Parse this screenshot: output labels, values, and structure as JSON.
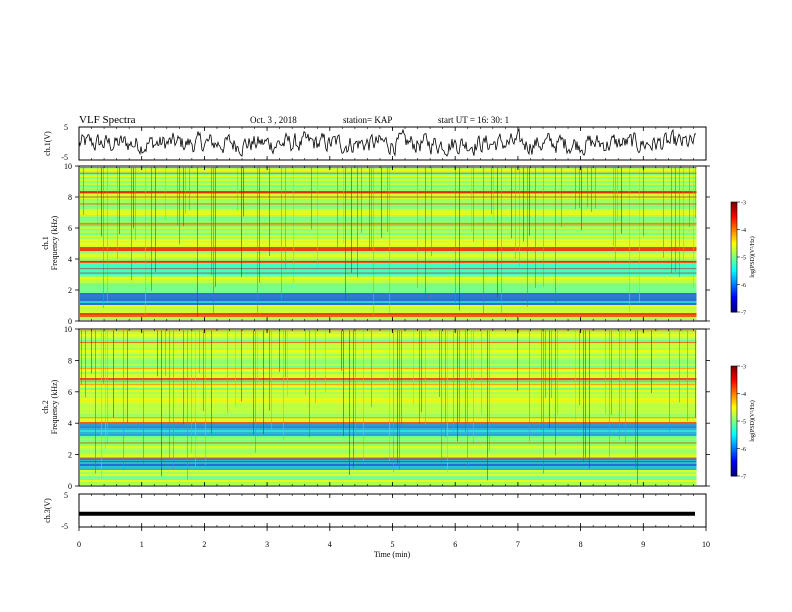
{
  "header": {
    "title": "VLF Spectra",
    "date": "Oct. 3  , 2018",
    "station": "station= KAP",
    "start": "start  UT  =   16: 30: 1"
  },
  "chart_data": [
    {
      "type": "line",
      "name": "ch1-waveform",
      "ylabel": "ch.1(V)",
      "yticks": [
        "5",
        "-5"
      ],
      "ylim": [
        -5,
        5
      ],
      "xlim": [
        0,
        10
      ],
      "mean": 0.0,
      "amplitude": 3.5,
      "end_x": 9.85
    },
    {
      "type": "heatmap",
      "name": "ch1-spectrogram",
      "ylabel_top": "ch.1",
      "ylabel": "Frequency  (kHz)",
      "yticks": [
        "0",
        "2",
        "4",
        "6",
        "8",
        "10"
      ],
      "ylim": [
        0,
        10
      ],
      "xlim": [
        0,
        10
      ],
      "end_x": 9.85,
      "colorbar": {
        "label": "log(PSD)(V²/Hz)",
        "ticks": [
          "-3",
          "-4",
          "-5",
          "-6",
          "-7"
        ],
        "range": [
          -7,
          -3
        ]
      }
    },
    {
      "type": "heatmap",
      "name": "ch2-spectrogram",
      "ylabel_top": "ch.2",
      "ylabel": "Frequency  (kHz)",
      "yticks": [
        "0",
        "2",
        "4",
        "6",
        "8",
        "10"
      ],
      "ylim": [
        0,
        10
      ],
      "xlim": [
        0,
        10
      ],
      "end_x": 9.85,
      "colorbar": {
        "label": "log(PSD)(V²/Hz)",
        "ticks": [
          "-3",
          "-4",
          "-5",
          "-6",
          "-7"
        ],
        "range": [
          -7,
          -3
        ]
      }
    },
    {
      "type": "line",
      "name": "ch3-waveform",
      "ylabel": "ch.3(V)",
      "yticks": [
        "5",
        "-5"
      ],
      "ylim": [
        -5,
        5
      ],
      "xlim": [
        0,
        10
      ],
      "mean": -1.0,
      "amplitude": 0.05,
      "end_x": 9.85
    }
  ],
  "xaxis": {
    "label": "Time  (min)",
    "ticks": [
      "0",
      "1",
      "2",
      "3",
      "4",
      "5",
      "6",
      "7",
      "8",
      "9",
      "10"
    ]
  }
}
